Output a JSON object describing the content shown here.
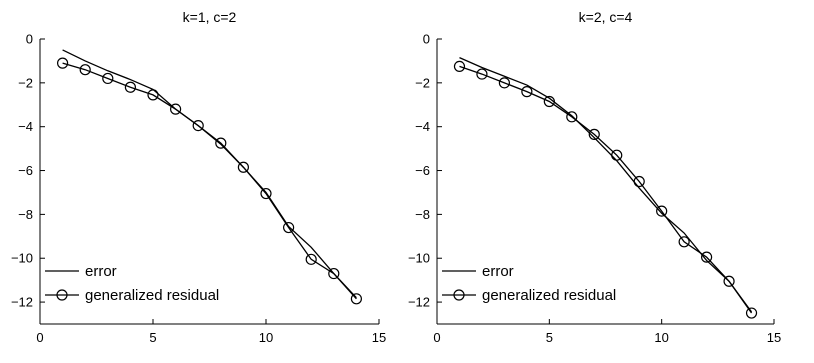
{
  "chart_data": [
    {
      "type": "line",
      "title": "k=1, c=2",
      "xlabel": "",
      "ylabel": "",
      "xlim": [
        0,
        15
      ],
      "ylim": [
        -13,
        0
      ],
      "xticks": [
        0,
        5,
        10,
        15
      ],
      "yticks": [
        0,
        -2,
        -4,
        -6,
        -8,
        -10,
        -12
      ],
      "xtick_labels": [
        "0",
        "5",
        "10",
        "15"
      ],
      "ytick_labels": [
        "0",
        "−2",
        "−4",
        "−6",
        "−8",
        "−10",
        "−12"
      ],
      "legend": {
        "position": "bottom-left",
        "entries": [
          "error",
          "generalized residual"
        ]
      },
      "grid": false,
      "series": [
        {
          "name": "error",
          "marker": "none",
          "x": [
            1,
            2,
            3,
            4,
            5,
            6,
            7,
            8,
            9,
            10,
            11,
            12,
            13,
            14
          ],
          "y": [
            -0.5,
            -1.0,
            -1.45,
            -1.85,
            -2.3,
            -3.2,
            -3.95,
            -4.8,
            -5.85,
            -7.0,
            -8.55,
            -9.5,
            -10.7,
            -11.8
          ]
        },
        {
          "name": "generalized residual",
          "marker": "circle",
          "x": [
            1,
            2,
            3,
            4,
            5,
            6,
            7,
            8,
            9,
            10,
            11,
            12,
            13,
            14
          ],
          "y": [
            -1.1,
            -1.4,
            -1.8,
            -2.2,
            -2.55,
            -3.2,
            -3.95,
            -4.75,
            -5.85,
            -7.05,
            -8.6,
            -10.05,
            -10.7,
            -11.85
          ]
        }
      ]
    },
    {
      "type": "line",
      "title": "k=2, c=4",
      "xlabel": "",
      "ylabel": "",
      "xlim": [
        0,
        15
      ],
      "ylim": [
        -13,
        0
      ],
      "xticks": [
        0,
        5,
        10,
        15
      ],
      "yticks": [
        0,
        -2,
        -4,
        -6,
        -8,
        -10,
        -12
      ],
      "xtick_labels": [
        "0",
        "5",
        "10",
        "15"
      ],
      "ytick_labels": [
        "0",
        "−2",
        "−4",
        "−6",
        "−8",
        "−10",
        "−12"
      ],
      "legend": {
        "position": "bottom-left",
        "entries": [
          "error",
          "generalized residual"
        ]
      },
      "grid": false,
      "series": [
        {
          "name": "error",
          "marker": "none",
          "x": [
            1,
            2,
            3,
            4,
            5,
            6,
            7,
            8,
            9,
            10,
            11,
            12,
            13,
            14
          ],
          "y": [
            -0.85,
            -1.3,
            -1.7,
            -2.1,
            -2.7,
            -3.5,
            -4.5,
            -5.55,
            -6.8,
            -7.95,
            -8.85,
            -10.1,
            -11.05,
            -12.45
          ]
        },
        {
          "name": "generalized residual",
          "marker": "circle",
          "x": [
            1,
            2,
            3,
            4,
            5,
            6,
            7,
            8,
            9,
            10,
            11,
            12,
            13,
            14
          ],
          "y": [
            -1.25,
            -1.6,
            -2.0,
            -2.4,
            -2.85,
            -3.55,
            -4.35,
            -5.3,
            -6.5,
            -7.85,
            -9.25,
            -9.95,
            -11.05,
            -12.5
          ]
        }
      ]
    }
  ]
}
